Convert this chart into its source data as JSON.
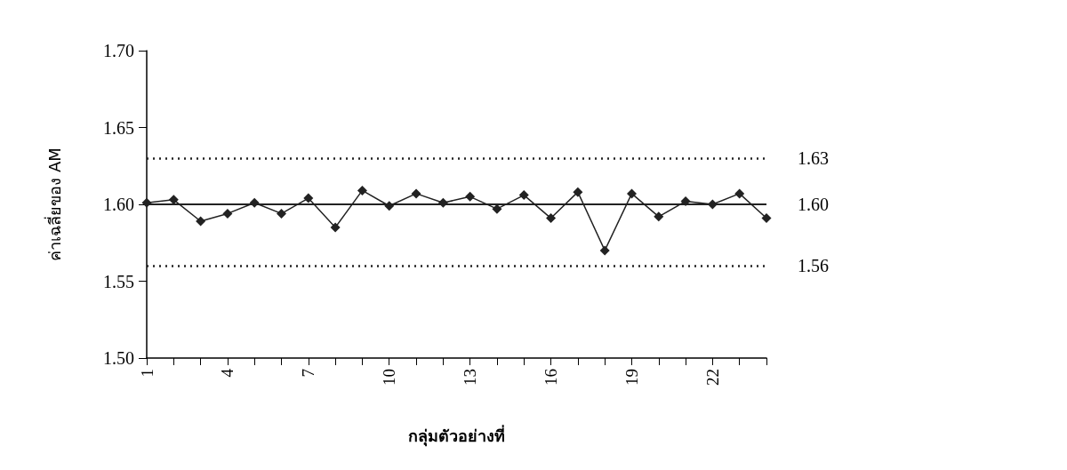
{
  "chart_data": {
    "type": "line",
    "xlabel": "กลุ่มตัวอย่างที่",
    "ylabel": "ค่าเฉลี่ยของ AM",
    "categories": [
      "1",
      null,
      null,
      "4",
      null,
      null,
      "7",
      null,
      null,
      "10",
      null,
      null,
      "13",
      null,
      null,
      "16",
      null,
      null,
      "19",
      null,
      null,
      "22",
      null,
      null
    ],
    "series": [
      {
        "color": "#222222",
        "values": [
          1.601,
          1.603,
          1.589,
          1.594,
          1.601,
          1.594,
          1.604,
          1.585,
          1.609,
          1.599,
          1.607,
          1.601,
          1.605,
          1.597,
          1.606,
          1.591,
          1.608,
          1.57,
          1.607,
          1.592,
          1.602,
          1.6,
          1.607,
          1.591
        ]
      }
    ],
    "ylim": [
      1.5,
      1.7
    ],
    "yticks": [
      {
        "value": 1.5,
        "label": "1.50"
      },
      {
        "value": 1.55,
        "label": "1.55"
      },
      {
        "value": 1.6,
        "label": "1.60"
      },
      {
        "value": 1.65,
        "label": "1.65"
      },
      {
        "value": 1.7,
        "label": "1.70"
      }
    ],
    "ref_lines": [
      {
        "axis": "y",
        "value": 1.63,
        "label": "1.63",
        "color": "#222222",
        "line_style": "dotted"
      },
      {
        "axis": "y",
        "value": 1.6,
        "label": "1.60",
        "color": "#222222",
        "line_style": "solid"
      },
      {
        "axis": "y",
        "value": 1.56,
        "label": "1.56",
        "color": "#222222",
        "line_style": "dotted"
      }
    ],
    "marker": "diamond",
    "line_style": "solid",
    "grid": false
  }
}
